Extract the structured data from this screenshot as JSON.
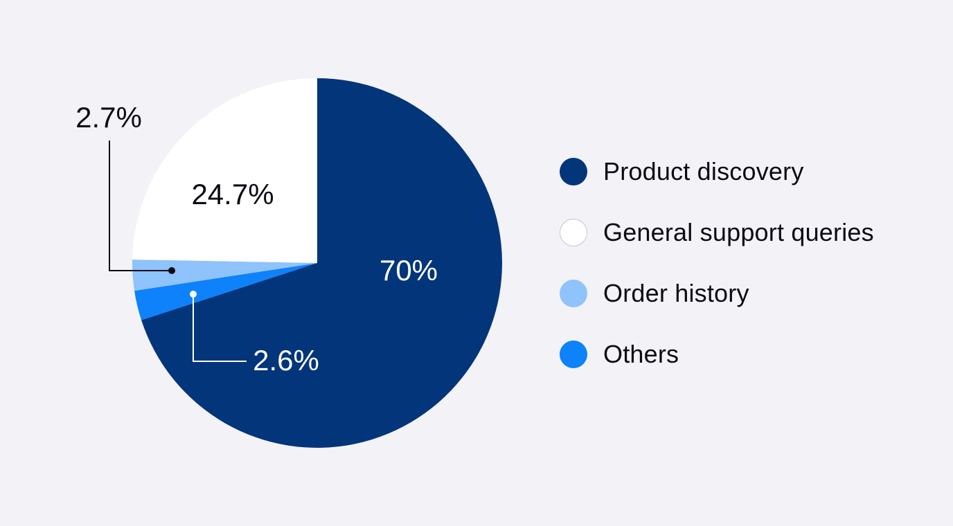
{
  "chart_data": {
    "type": "pie",
    "start_angle_deg": 0,
    "direction": "clockwise",
    "legend_position": "right",
    "slices": [
      {
        "name": "Product discovery",
        "value": 70,
        "label": "70%",
        "color": "#03357a",
        "label_color": "#ffffff"
      },
      {
        "name": "Others",
        "value": 2.6,
        "label": "2.6%",
        "color": "#0d82fb",
        "label_color": "#ffffff"
      },
      {
        "name": "Order history",
        "value": 2.7,
        "label": "2.7%",
        "color": "#8ec3fb",
        "label_color": "#0b0b14"
      },
      {
        "name": "General support queries",
        "value": 24.7,
        "label": "24.7%",
        "color": "#ffffff",
        "label_color": "#0b0b14"
      }
    ]
  },
  "legend": [
    {
      "label": "Product discovery",
      "color": "#03357a"
    },
    {
      "label": "General support queries",
      "color": "#ffffff"
    },
    {
      "label": "Order history",
      "color": "#8ec3fb"
    },
    {
      "label": "Others",
      "color": "#0d82fb"
    }
  ]
}
